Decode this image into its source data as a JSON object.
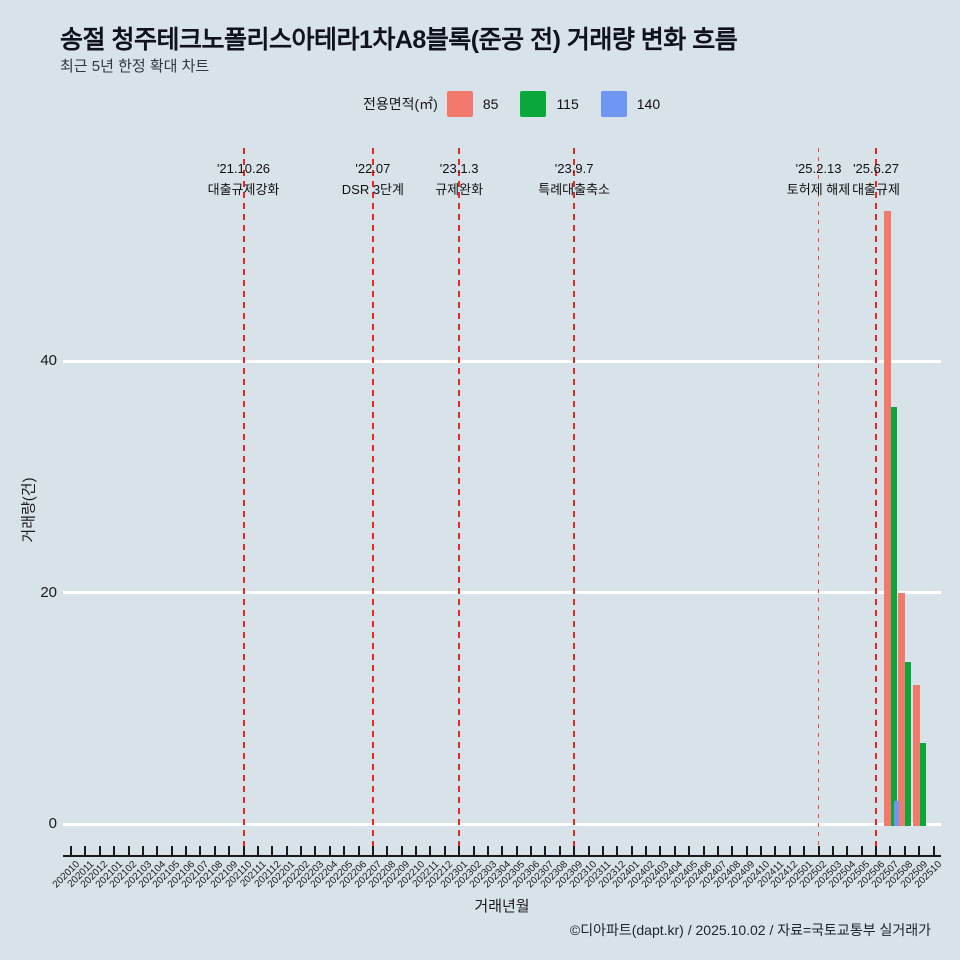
{
  "title": "송절 청주테크노폴리스아테라1차A8블록(준공 전) 거래량 변화 흐름",
  "subtitle": "최근 5년 한정 확대 차트",
  "legend": {
    "label": "전용면적(㎡)",
    "items": [
      {
        "label": "85",
        "color": "#f4796d"
      },
      {
        "label": "115",
        "color": "#0aa73b"
      },
      {
        "label": "140",
        "color": "#6e96f2"
      }
    ]
  },
  "chart_data": {
    "type": "bar",
    "x": [
      "202010",
      "202011",
      "202012",
      "202101",
      "202102",
      "202103",
      "202104",
      "202105",
      "202106",
      "202107",
      "202108",
      "202109",
      "202110",
      "202111",
      "202112",
      "202201",
      "202202",
      "202203",
      "202204",
      "202205",
      "202206",
      "202207",
      "202208",
      "202209",
      "202210",
      "202211",
      "202212",
      "202301",
      "202302",
      "202303",
      "202304",
      "202305",
      "202306",
      "202307",
      "202308",
      "202309",
      "202310",
      "202311",
      "202312",
      "202401",
      "202402",
      "202403",
      "202404",
      "202405",
      "202406",
      "202407",
      "202408",
      "202409",
      "202410",
      "202411",
      "202412",
      "202501",
      "202502",
      "202503",
      "202504",
      "202505",
      "202506",
      "202507",
      "202508",
      "202509",
      "202510"
    ],
    "series": [
      {
        "name": "85",
        "color": "#f4796d",
        "values_by_month": {
          "202507": 53,
          "202508": 20,
          "202509": 12
        }
      },
      {
        "name": "115",
        "color": "#0aa73b",
        "values_by_month": {
          "202507": 36,
          "202508": 14,
          "202509": 7
        }
      },
      {
        "name": "140",
        "color": "#6e96f2",
        "values_by_month": {
          "202507": 2
        }
      }
    ],
    "xlabel": "거래년월",
    "ylabel": "거래량(건)",
    "yticks": [
      0,
      20,
      40
    ],
    "ylim": [
      0,
      58
    ],
    "grid": "horizontal-white",
    "legend_position": "top-center",
    "annotations": [
      {
        "month": "202110",
        "date": "'21.10.26",
        "label": "대출규제강화",
        "style": "bold"
      },
      {
        "month": "202207",
        "date": "'22.07",
        "label": "DSR 3단계",
        "style": "bold"
      },
      {
        "month": "202301",
        "date": "'23.1.3",
        "label": "규제완화",
        "style": "bold"
      },
      {
        "month": "202309",
        "date": "'23.9.7",
        "label": "특례대출축소",
        "style": "bold"
      },
      {
        "month": "202502",
        "date": "'25.2.13",
        "label": "토허제 해제",
        "style": "thin"
      },
      {
        "month": "202506",
        "date": "'25.6.27",
        "label": "대출규제",
        "style": "bold"
      }
    ]
  },
  "footer": {
    "credit": "©디아파트(dapt.kr) / 2025.10.02 / 자료=국토교통부 실거래가"
  },
  "colors": {
    "background": "#d8e2e9",
    "gridline": "#ffffff",
    "annotation_line": "#e8291f",
    "axis": "#1a1a1a",
    "title": "#10131f",
    "subtitle": "#2e3845"
  }
}
